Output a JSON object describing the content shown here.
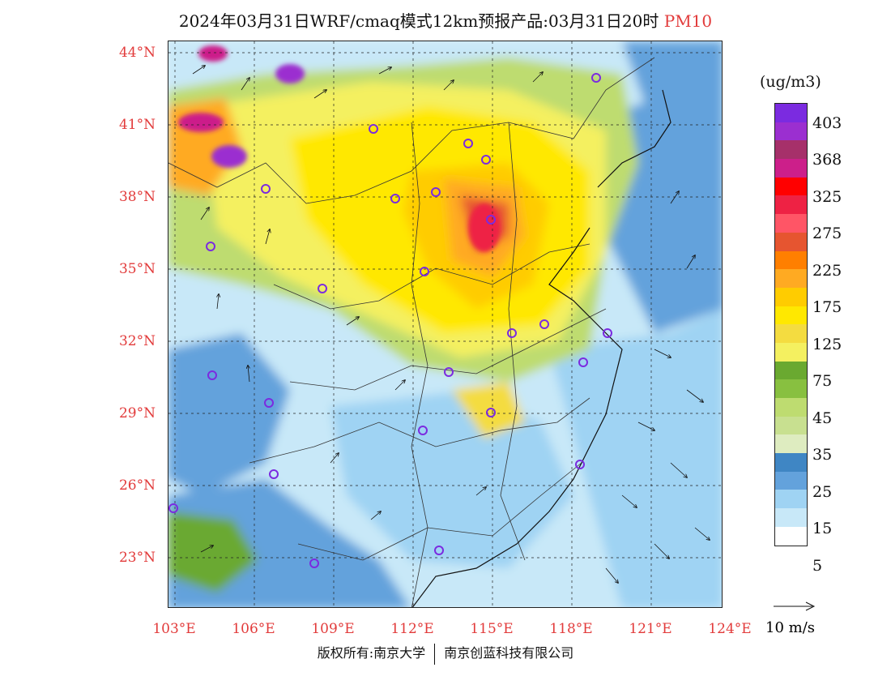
{
  "title": {
    "main": "2024年03月31日WRF/cmaq模式12km预报产品:03月31日20时",
    "pollutant": "PM10"
  },
  "lat_labels": [
    "44°N",
    "41°N",
    "38°N",
    "35°N",
    "32°N",
    "29°N",
    "26°N",
    "23°N"
  ],
  "lon_labels": [
    "103°E",
    "106°E",
    "109°E",
    "112°E",
    "115°E",
    "118°E",
    "121°E",
    "124°E"
  ],
  "legend": {
    "unit": "(ug/m3)",
    "labels": [
      "403",
      "368",
      "325",
      "275",
      "225",
      "175",
      "125",
      "75",
      "45",
      "35",
      "25",
      "15",
      "5"
    ],
    "colors": [
      "#7b2be0",
      "#9b2fd0",
      "#a6306a",
      "#cc1f8a",
      "#ff0000",
      "#ee2244",
      "#ff5566",
      "#e65530",
      "#ff7f00",
      "#ffaa22",
      "#ffcc00",
      "#ffe800",
      "#f4dc40",
      "#f4f060",
      "#6aa930",
      "#88c040",
      "#bedc70",
      "#c8e090",
      "#deecc0",
      "#3f86c4",
      "#63a2dc",
      "#9fd3f3",
      "#c8e8f8",
      "#ffffff"
    ]
  },
  "wind_reference": "10 m/s",
  "footer": {
    "left": "版权所有:南京大学",
    "right": "南京创蓝科技有限公司"
  }
}
